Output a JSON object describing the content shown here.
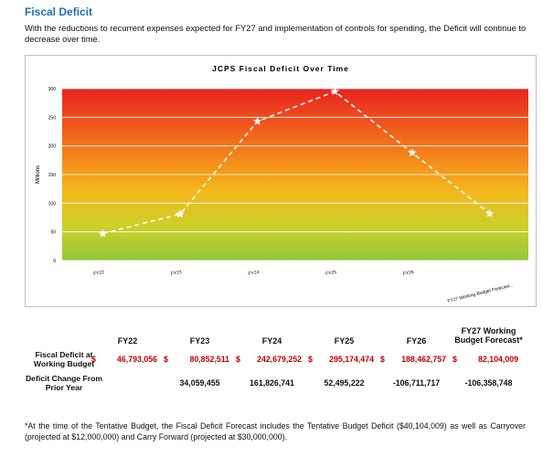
{
  "heading": "Fiscal Deficit",
  "intro": "With the reductions to recurrent expenses expected for FY27 and implementation of controls for spending, the Deficit will continue to decrease over time.",
  "chart_data": {
    "type": "line",
    "title": "JCPS Fiscal Deficit Over Time",
    "y_label": "Millions",
    "categories": [
      "FY22",
      "FY23",
      "FY24",
      "FY25",
      "FY26",
      "FY27 Working Budget Forecast..."
    ],
    "values": [
      47,
      81,
      243,
      295,
      188,
      82
    ],
    "color": "#ffffff",
    "ylim": [
      0,
      300
    ],
    "yticks": [
      0,
      50,
      100,
      150,
      200,
      250,
      300
    ],
    "grid": true
  },
  "table": {
    "headers": [
      "FY22",
      "FY23",
      "FY24",
      "FY25",
      "FY26",
      "FY27 Working Budget Forecast*"
    ],
    "rows": [
      {
        "label": "Fiscal Deficit at Working Budget",
        "currency": "$",
        "values": [
          "46,793,056",
          "80,852,511",
          "242,679,252",
          "295,174,474",
          "188,462,757",
          "82,104,009"
        ]
      },
      {
        "label": "Deficit Change From Prior Year",
        "values": [
          null,
          "34,059,455",
          "161,826,741",
          "52,495,222",
          "-106,711,717",
          "-106,358,748"
        ]
      }
    ]
  },
  "footnote": "*At the time of the Tentative Budget, the Fiscal Deficit Forecast includes the Tentative Budget Deficit ($40,104,009) as well as Carryover (projected at $12,000,000) and Carry Forward (projected at $30,000,000)."
}
